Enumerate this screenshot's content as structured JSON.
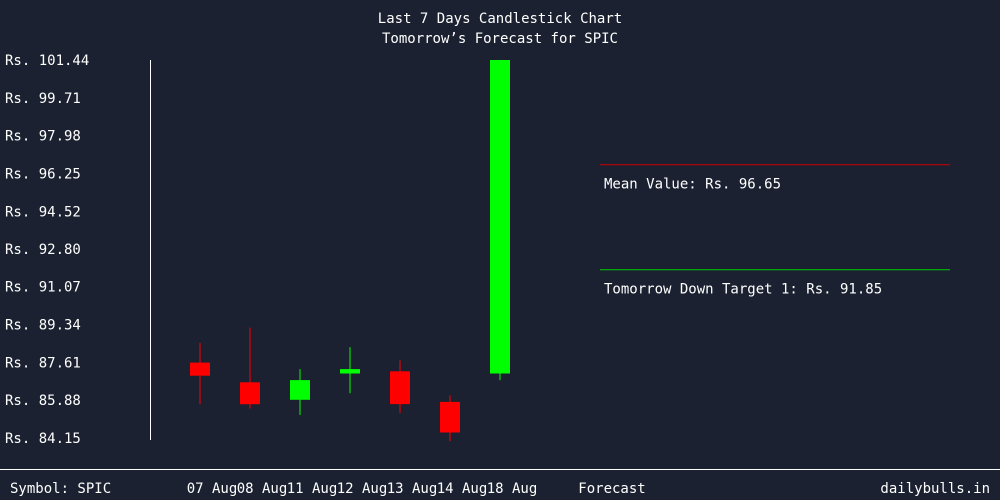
{
  "chart_data": {
    "type": "candlestick",
    "title": "Last 7 Days Candlestick Chart",
    "subtitle": "Tomorrow’s Forecast for SPIC",
    "ylim": [
      84.15,
      101.44
    ],
    "y_ticks": [
      "Rs. 101.44",
      "Rs. 99.71",
      "Rs. 97.98",
      "Rs. 96.25",
      "Rs. 94.52",
      "Rs. 92.80",
      "Rs. 91.07",
      "Rs. 89.34",
      "Rs. 87.61",
      "Rs. 85.88",
      "Rs. 84.15"
    ],
    "y_tick_values": [
      101.44,
      99.71,
      97.98,
      96.25,
      94.52,
      92.8,
      91.07,
      89.34,
      87.61,
      85.88,
      84.15
    ],
    "categories": [
      "07 Aug",
      "08 Aug",
      "11 Aug",
      "12 Aug",
      "13 Aug",
      "14 Aug",
      "18 Aug",
      "Forecast"
    ],
    "candles": [
      {
        "date": "07 Aug",
        "open": 87.6,
        "close": 87.0,
        "high": 88.5,
        "low": 85.7,
        "color": "#ff0000"
      },
      {
        "date": "08 Aug",
        "open": 86.7,
        "close": 85.7,
        "high": 89.2,
        "low": 85.5,
        "color": "#ff0000"
      },
      {
        "date": "11 Aug",
        "open": 85.9,
        "close": 86.8,
        "high": 87.3,
        "low": 85.2,
        "color": "#00ff00"
      },
      {
        "date": "12 Aug",
        "open": 87.1,
        "close": 87.3,
        "high": 88.3,
        "low": 86.2,
        "color": "#00ff00"
      },
      {
        "date": "13 Aug",
        "open": 87.2,
        "close": 85.7,
        "high": 87.7,
        "low": 85.3,
        "color": "#ff0000"
      },
      {
        "date": "14 Aug",
        "open": 85.8,
        "close": 84.4,
        "high": 86.1,
        "low": 84.0,
        "color": "#ff0000"
      },
      {
        "date": "18 Aug",
        "open": 87.1,
        "close": 101.44,
        "high": 101.44,
        "low": 86.8,
        "color": "#00ff00"
      }
    ],
    "mean_line": {
      "label": "Mean Value: Rs. 96.65",
      "value": 96.65,
      "color": "#cc0000"
    },
    "target_line": {
      "label": "Tomorrow Down Target 1: Rs. 91.85",
      "value": 91.85,
      "color": "#00cc00"
    },
    "grid": false
  },
  "footer": {
    "symbol": "Symbol: SPIC",
    "brand": "dailybulls.in"
  }
}
